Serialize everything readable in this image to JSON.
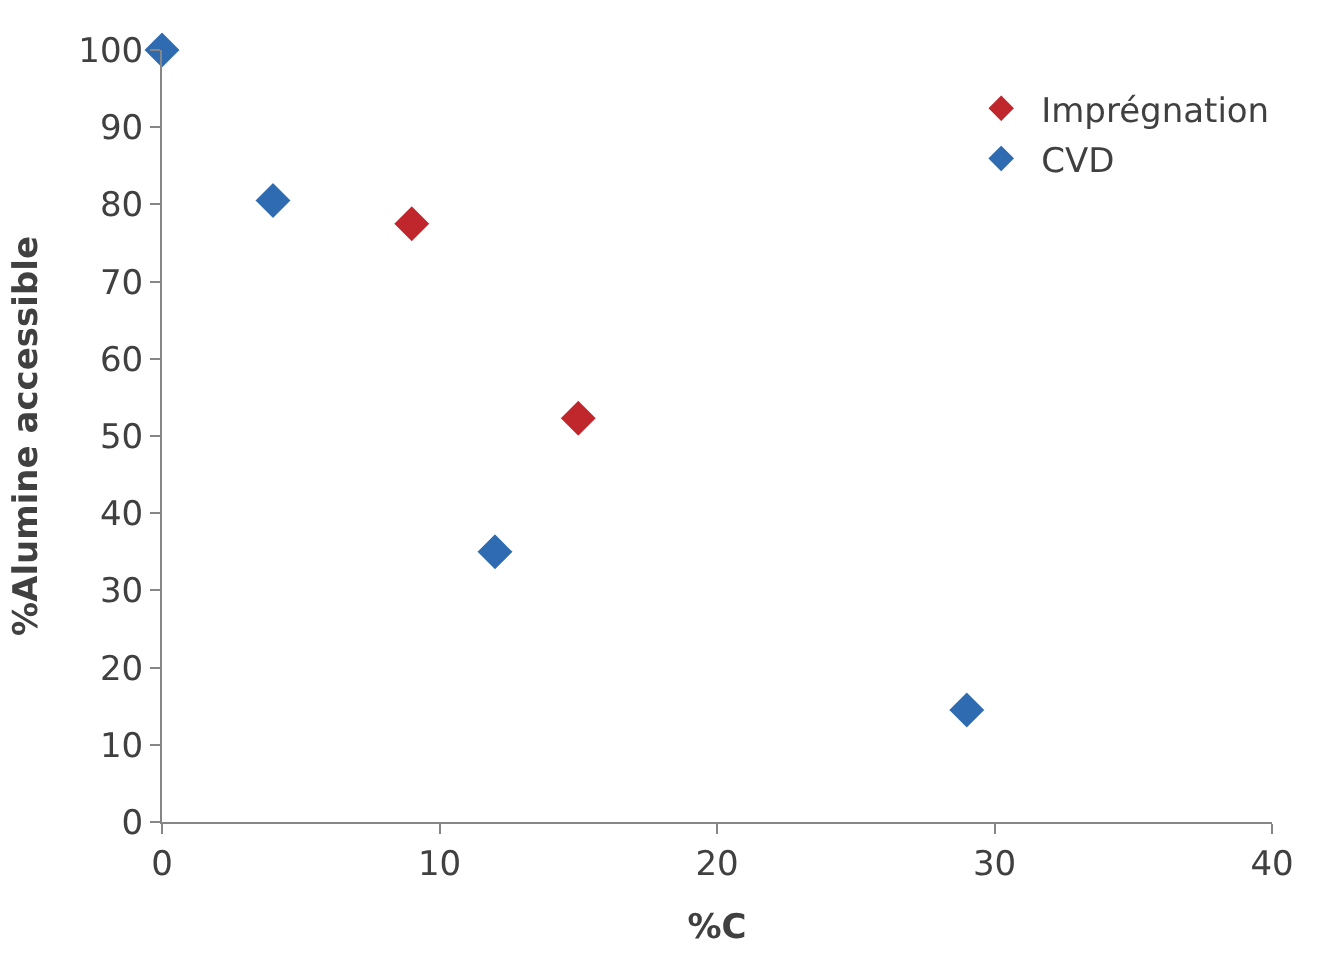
{
  "chart_data": {
    "type": "scatter",
    "xlabel": "%C",
    "ylabel": "%Alumine accessible",
    "xlim": [
      0,
      40
    ],
    "xticks": [
      0,
      10,
      20,
      30,
      40
    ],
    "ylim": [
      0,
      100
    ],
    "yticks": [
      0,
      10,
      20,
      30,
      40,
      50,
      60,
      70,
      80,
      90,
      100
    ],
    "legend": "top right",
    "marker": "diamond",
    "series": [
      {
        "name": "Imprégnation",
        "color": "#c0272d",
        "x": [
          9,
          15
        ],
        "values": [
          77.5,
          52.3
        ]
      },
      {
        "name": "CVD",
        "color": "#2e6bb0",
        "x": [
          0,
          4,
          12,
          29
        ],
        "values": [
          100,
          80.5,
          35,
          14.5
        ]
      }
    ]
  }
}
